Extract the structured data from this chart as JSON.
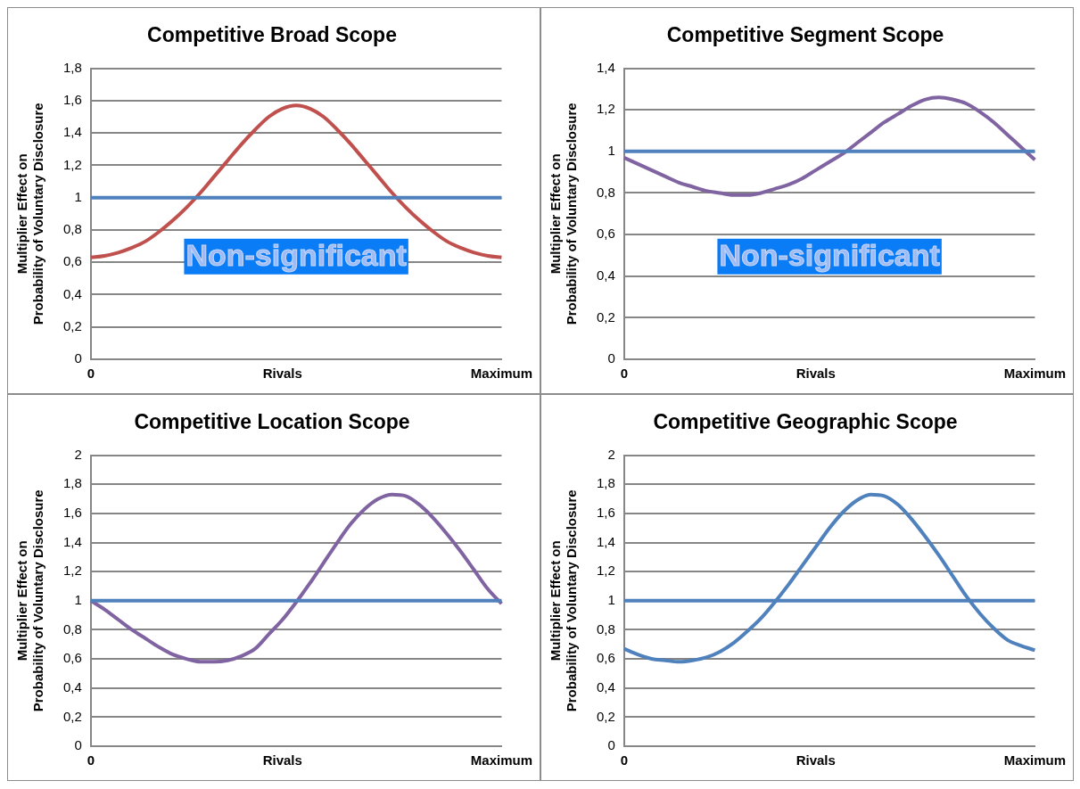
{
  "chart_data": [
    {
      "type": "line",
      "title": "Competitive Broad Scope",
      "ylabel": "Multiplier Effect on\nProbability of Voluntary Disclosure",
      "categories": [
        "0",
        null,
        null,
        null,
        null,
        null,
        null,
        null,
        null,
        null,
        null,
        null,
        null,
        null,
        "Rivals",
        null,
        null,
        null,
        null,
        null,
        null,
        null,
        null,
        null,
        null,
        null,
        null,
        null,
        null,
        null,
        "Maximum"
      ],
      "series": [
        {
          "color": "#c0504d",
          "values": [
            0.63,
            0.64,
            0.66,
            0.69,
            0.73,
            0.79,
            0.86,
            0.94,
            1.03,
            1.13,
            1.23,
            1.33,
            1.42,
            1.5,
            1.55,
            1.57,
            1.55,
            1.5,
            1.42,
            1.33,
            1.23,
            1.13,
            1.03,
            0.94,
            0.86,
            0.79,
            0.73,
            0.69,
            0.66,
            0.64,
            0.63
          ]
        }
      ],
      "ref_lines": [
        {
          "axis": "y",
          "value": 1,
          "color": "#4f81bd"
        }
      ],
      "ylim": [
        0,
        1.8
      ],
      "yticks": [
        {
          "value": 0,
          "label": "0"
        },
        {
          "value": 0.2,
          "label": "0,2"
        },
        {
          "value": 0.4,
          "label": "0,4"
        },
        {
          "value": 0.6,
          "label": "0,6"
        },
        {
          "value": 0.8,
          "label": "0,8"
        },
        {
          "value": 1,
          "label": "1"
        },
        {
          "value": 1.2,
          "label": "1,2"
        },
        {
          "value": 1.4,
          "label": "1,4"
        },
        {
          "value": 1.6,
          "label": "1,6"
        },
        {
          "value": 1.8,
          "label": "1,8"
        }
      ],
      "grid": "y",
      "legend": false,
      "marker": "none",
      "line_style": "solid",
      "annotations": [
        "Non-significant"
      ]
    },
    {
      "type": "line",
      "title": "Competitive Segment Scope",
      "ylabel": "Multiplier Effect on\nProbability of Voluntary Disclosure",
      "categories": [
        "0",
        null,
        null,
        null,
        null,
        null,
        null,
        null,
        null,
        null,
        null,
        null,
        null,
        null,
        "Rivals",
        null,
        null,
        null,
        null,
        null,
        null,
        null,
        null,
        null,
        null,
        null,
        null,
        null,
        null,
        null,
        "Maximum"
      ],
      "series": [
        {
          "color": "#8064a2",
          "values": [
            0.97,
            0.94,
            0.91,
            0.88,
            0.85,
            0.83,
            0.81,
            0.8,
            0.79,
            0.79,
            0.8,
            0.82,
            0.84,
            0.87,
            0.91,
            0.95,
            0.99,
            1.04,
            1.09,
            1.14,
            1.18,
            1.22,
            1.25,
            1.26,
            1.25,
            1.23,
            1.19,
            1.14,
            1.08,
            1.02,
            0.96
          ]
        }
      ],
      "ref_lines": [
        {
          "axis": "y",
          "value": 1,
          "color": "#4f81bd"
        }
      ],
      "ylim": [
        0,
        1.4
      ],
      "yticks": [
        {
          "value": 0,
          "label": "0"
        },
        {
          "value": 0.2,
          "label": "0,2"
        },
        {
          "value": 0.4,
          "label": "0,4"
        },
        {
          "value": 0.6,
          "label": "0,6"
        },
        {
          "value": 0.8,
          "label": "0,8"
        },
        {
          "value": 1,
          "label": "1"
        },
        {
          "value": 1.2,
          "label": "1,2"
        },
        {
          "value": 1.4,
          "label": "1,4"
        }
      ],
      "grid": "y",
      "legend": false,
      "marker": "none",
      "line_style": "solid",
      "annotations": [
        "Non-significant"
      ]
    },
    {
      "type": "line",
      "title": "Competitive Location Scope",
      "ylabel": "Multiplier Effect on\nProbability of Voluntary Disclosure",
      "categories": [
        "0",
        null,
        null,
        null,
        null,
        null,
        null,
        null,
        null,
        null,
        null,
        null,
        null,
        null,
        "Rivals",
        null,
        null,
        null,
        null,
        null,
        null,
        null,
        null,
        null,
        null,
        null,
        null,
        null,
        null,
        null,
        "Maximum"
      ],
      "series": [
        {
          "color": "#8064a2",
          "values": [
            1.0,
            0.94,
            0.87,
            0.8,
            0.74,
            0.68,
            0.63,
            0.6,
            0.58,
            0.58,
            0.59,
            0.62,
            0.67,
            0.77,
            0.87,
            0.99,
            1.12,
            1.26,
            1.4,
            1.53,
            1.63,
            1.7,
            1.73,
            1.72,
            1.66,
            1.57,
            1.46,
            1.34,
            1.21,
            1.08,
            0.98
          ]
        }
      ],
      "ref_lines": [
        {
          "axis": "y",
          "value": 1,
          "color": "#4f81bd"
        }
      ],
      "ylim": [
        0,
        2
      ],
      "yticks": [
        {
          "value": 0,
          "label": "0"
        },
        {
          "value": 0.2,
          "label": "0,2"
        },
        {
          "value": 0.4,
          "label": "0,4"
        },
        {
          "value": 0.6,
          "label": "0,6"
        },
        {
          "value": 0.8,
          "label": "0,8"
        },
        {
          "value": 1,
          "label": "1"
        },
        {
          "value": 1.2,
          "label": "1,2"
        },
        {
          "value": 1.4,
          "label": "1,4"
        },
        {
          "value": 1.6,
          "label": "1,6"
        },
        {
          "value": 1.8,
          "label": "1,8"
        },
        {
          "value": 2,
          "label": "2"
        }
      ],
      "grid": "y",
      "legend": false,
      "marker": "none",
      "line_style": "solid"
    },
    {
      "type": "line",
      "title": "Competitive Geographic Scope",
      "ylabel": "Multiplier Effect on\nProbability of Voluntary Disclosure",
      "categories": [
        "0",
        null,
        null,
        null,
        null,
        null,
        null,
        null,
        null,
        null,
        null,
        null,
        null,
        null,
        "Rivals",
        null,
        null,
        null,
        null,
        null,
        null,
        null,
        null,
        null,
        null,
        null,
        null,
        null,
        null,
        null,
        "Maximum"
      ],
      "series": [
        {
          "color": "#4f81bd",
          "values": [
            0.67,
            0.63,
            0.6,
            0.59,
            0.58,
            0.59,
            0.61,
            0.65,
            0.71,
            0.79,
            0.88,
            0.99,
            1.11,
            1.24,
            1.37,
            1.5,
            1.61,
            1.69,
            1.73,
            1.72,
            1.66,
            1.56,
            1.44,
            1.31,
            1.17,
            1.03,
            0.91,
            0.81,
            0.73,
            0.69,
            0.66
          ]
        }
      ],
      "ref_lines": [
        {
          "axis": "y",
          "value": 1,
          "color": "#4f81bd"
        }
      ],
      "ylim": [
        0,
        2
      ],
      "yticks": [
        {
          "value": 0,
          "label": "0"
        },
        {
          "value": 0.2,
          "label": "0,2"
        },
        {
          "value": 0.4,
          "label": "0,4"
        },
        {
          "value": 0.6,
          "label": "0,6"
        },
        {
          "value": 0.8,
          "label": "0,8"
        },
        {
          "value": 1,
          "label": "1"
        },
        {
          "value": 1.2,
          "label": "1,2"
        },
        {
          "value": 1.4,
          "label": "1,4"
        },
        {
          "value": 1.6,
          "label": "1,6"
        },
        {
          "value": 1.8,
          "label": "1,8"
        },
        {
          "value": 2,
          "label": "2"
        }
      ],
      "grid": "y",
      "legend": false,
      "marker": "none",
      "line_style": "solid"
    }
  ]
}
